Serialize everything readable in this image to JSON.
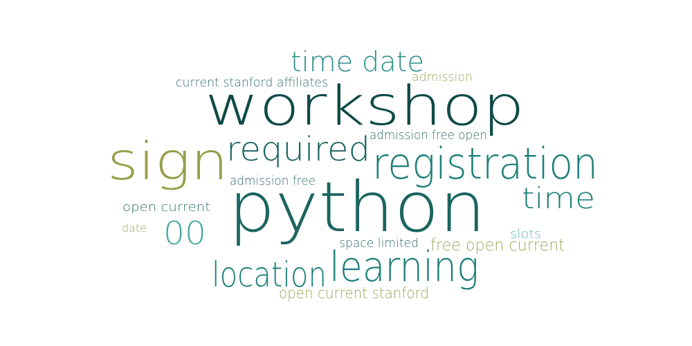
{
  "palette": {
    "darkest": "#0f4a47",
    "dark": "#1b6461",
    "teal": "#1d7f7a",
    "mid": "#2e8f8b",
    "light": "#4aa9a4",
    "lighter": "#5fb4b0",
    "olive": "#97a04a",
    "olive_light": "#9fa75b"
  },
  "words": [
    {
      "text": "workshop",
      "color": "#0f4a47"
    },
    {
      "text": "python",
      "color": "#1b6461"
    },
    {
      "text": "sign",
      "color": "#97a04a"
    },
    {
      "text": "registration",
      "color": "#1d7f7a"
    },
    {
      "text": "required",
      "color": "#1b6461"
    },
    {
      "text": "learning",
      "color": "#1d7f7a"
    },
    {
      "text": "time date",
      "color": "#2e8f8b"
    },
    {
      "text": "time",
      "color": "#1d7f7a"
    },
    {
      "text": "location",
      "color": "#1d7f7a"
    },
    {
      "text": "00",
      "color": "#4aa9a4"
    },
    {
      "text": "current stanford affiliates",
      "color": "#2e6e6b"
    },
    {
      "text": "admission",
      "color": "#9fa75b"
    },
    {
      "text": "admission free open",
      "color": "#2e6e6b"
    },
    {
      "text": "admission free",
      "color": "#2e6e6b"
    },
    {
      "text": "open current",
      "color": "#2e6e6b"
    },
    {
      "text": "date",
      "color": "#9fa75b"
    },
    {
      "text": "slots",
      "color": "#5fb4b0"
    },
    {
      "text": "space limited",
      "color": "#2e6e6b"
    },
    {
      "text": "free open current",
      "color": "#9fa75b"
    },
    {
      "text": "open current stanford",
      "color": "#9fa75b"
    }
  ]
}
